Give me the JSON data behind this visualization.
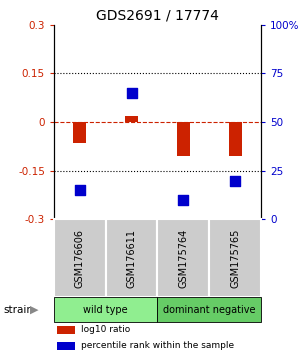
{
  "title": "GDS2691 / 17774",
  "samples": [
    "GSM176606",
    "GSM176611",
    "GSM175764",
    "GSM175765"
  ],
  "log10_ratio": [
    -0.065,
    0.02,
    -0.105,
    -0.105
  ],
  "percentile_rank": [
    15,
    65,
    10,
    20
  ],
  "groups": [
    {
      "label": "wild type",
      "samples": [
        0,
        1
      ],
      "color": "#90EE90"
    },
    {
      "label": "dominant negative",
      "samples": [
        2,
        3
      ],
      "color": "#66CC66"
    }
  ],
  "group_label": "strain",
  "ylim_left": [
    -0.3,
    0.3
  ],
  "ylim_right": [
    0,
    100
  ],
  "yticks_left": [
    -0.3,
    -0.15,
    0,
    0.15,
    0.3
  ],
  "yticks_right": [
    0,
    25,
    50,
    75,
    100
  ],
  "yticklabels_right": [
    "0",
    "25",
    "50",
    "75",
    "100%"
  ],
  "hlines_dotted": [
    0.15,
    -0.15
  ],
  "hline_dashed_color": "#CC2200",
  "bar_color": "#CC2200",
  "dot_color": "#0000CC",
  "bar_width": 0.25,
  "dot_size": 45,
  "legend": [
    {
      "color": "#CC2200",
      "label": "log10 ratio"
    },
    {
      "color": "#0000CC",
      "label": "percentile rank within the sample"
    }
  ],
  "sample_box_color": "#CCCCCC",
  "title_fontsize": 10,
  "tick_fontsize": 7.5,
  "label_fontsize": 7
}
